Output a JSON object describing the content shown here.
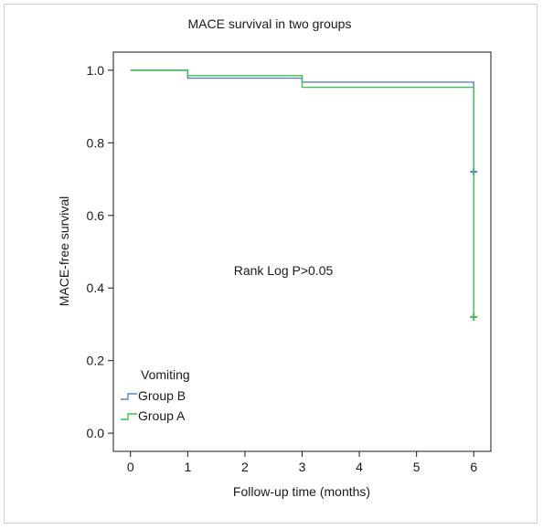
{
  "chart_data": {
    "type": "line",
    "title": "MACE survival in two groups",
    "xlabel": "Follow-up time (months)",
    "ylabel": "MACE-free survival",
    "xlim": [
      -0.3,
      6.3
    ],
    "ylim": [
      -0.05,
      1.05
    ],
    "x_ticks": [
      0,
      1,
      2,
      3,
      4,
      5,
      6
    ],
    "y_ticks": [
      0.0,
      0.2,
      0.4,
      0.6,
      0.8,
      1.0
    ],
    "y_tick_labels": [
      "0.0",
      "0.2",
      "0.4",
      "0.6",
      "0.8",
      "1.0"
    ],
    "grid": false,
    "legend": {
      "title": "Vomiting",
      "position": "bottom-left"
    },
    "annotation": "Rank Log P>0.05",
    "series": [
      {
        "name": "Group B",
        "color": "#5b7fd0",
        "step": [
          [
            0,
            1.0
          ],
          [
            1,
            0.978
          ],
          [
            3,
            0.967
          ],
          [
            6,
            0.72
          ]
        ],
        "censor": [
          [
            6,
            0.72
          ]
        ]
      },
      {
        "name": "Group A",
        "color": "#3fbf4f",
        "step": [
          [
            0,
            1.0
          ],
          [
            1,
            0.985
          ],
          [
            3,
            0.953
          ],
          [
            6,
            0.32
          ]
        ],
        "censor": [
          [
            6,
            0.32
          ]
        ]
      }
    ]
  }
}
